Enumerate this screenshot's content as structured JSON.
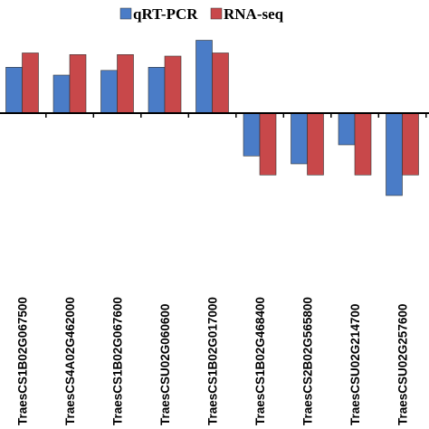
{
  "chart_data": {
    "type": "bar",
    "categories": [
      "TraesCS1B02G067500",
      "TraesCS4A02G462000",
      "TraesCS1B02G067600",
      "TraesCSU02G060600",
      "TraesCS1B02G017000",
      "TraesCS1B02G468400",
      "TraesCS2B02G565800",
      "TraesCSU02G214700",
      "TraesCSU02G257600"
    ],
    "series": [
      {
        "name": "qRT-PCR",
        "color": "#4a7cc7",
        "values": [
          2.9,
          2.4,
          2.7,
          2.9,
          4.6,
          -2.7,
          -3.2,
          -2.0,
          -5.2
        ]
      },
      {
        "name": "RNA-seq",
        "color": "#c8484a",
        "values": [
          3.8,
          3.7,
          3.7,
          3.6,
          3.8,
          -3.9,
          -3.9,
          -3.9,
          -3.9
        ]
      }
    ],
    "title": "",
    "xlabel": "",
    "ylabel": "",
    "ylim": [
      -6,
      5
    ],
    "grid": false,
    "legend_position": "top-center"
  }
}
